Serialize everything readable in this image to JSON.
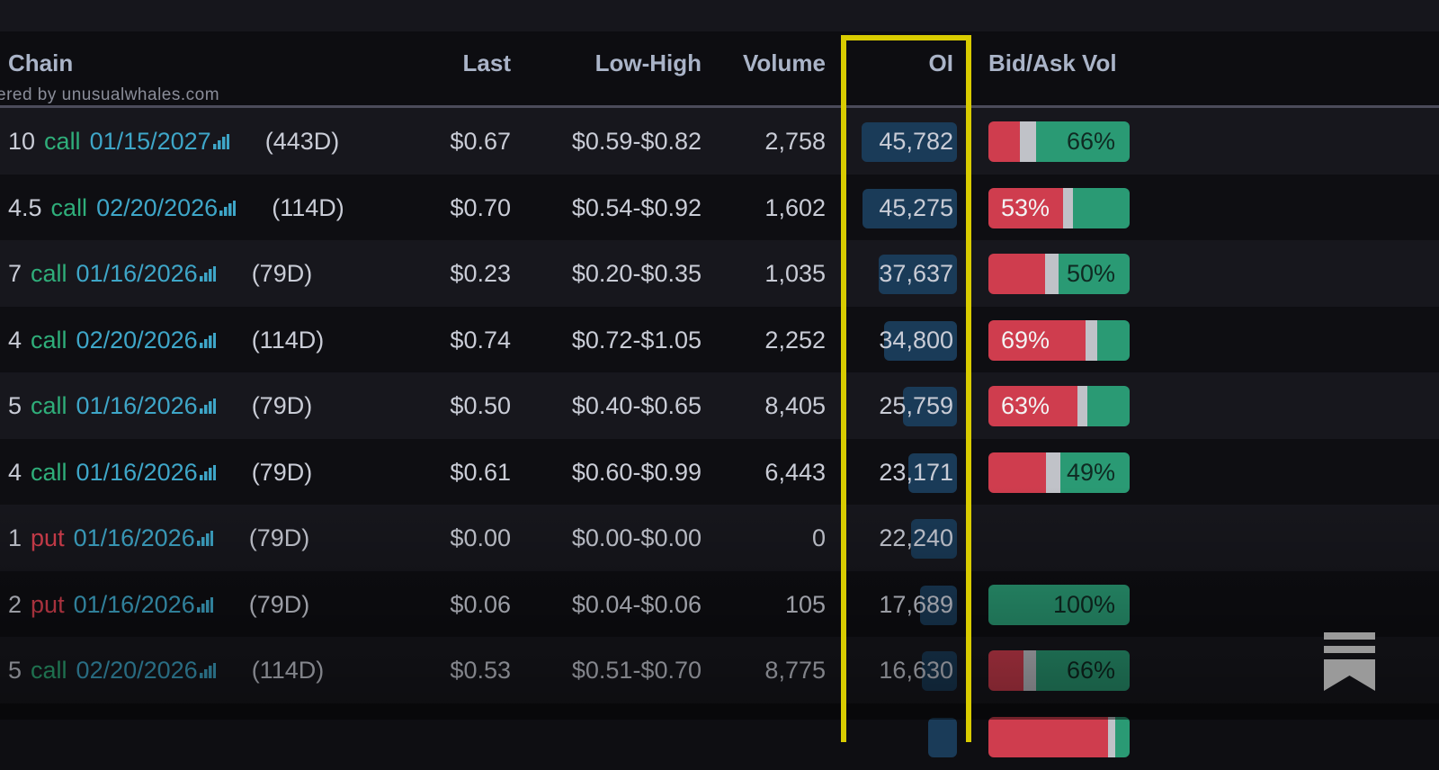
{
  "header": {
    "chain": "Chain",
    "last": "Last",
    "low_high": "Low-High",
    "volume": "Volume",
    "oi": "OI",
    "bid_ask_vol": "Bid/Ask Vol",
    "powered_by": "ered by unusualwhales.com"
  },
  "colors": {
    "call": "#2fae7a",
    "put": "#d8404f",
    "date": "#3ea6c8",
    "bid": "#cf3d4e",
    "ask": "#2a9a74",
    "highlight": "#d9cc00"
  },
  "oi_max": 45782,
  "rows": [
    {
      "strike": "10",
      "type": "call",
      "date": "01/15/2027",
      "dte": "(443D)",
      "last": "$0.67",
      "low_high": "$0.59-$0.82",
      "volume": "2,758",
      "oi": "45,782",
      "oi_value": 45782,
      "bid": 22,
      "mid": 12,
      "ask": 66,
      "label": "66%",
      "label_side": "ask"
    },
    {
      "strike": "4.5",
      "type": "call",
      "date": "02/20/2026",
      "dte": "(114D)",
      "last": "$0.70",
      "low_high": "$0.54-$0.92",
      "volume": "1,602",
      "oi": "45,275",
      "oi_value": 45275,
      "bid": 53,
      "mid": 7,
      "ask": 40,
      "label": "53%",
      "label_side": "bid"
    },
    {
      "strike": "7",
      "type": "call",
      "date": "01/16/2026",
      "dte": "(79D)",
      "last": "$0.23",
      "low_high": "$0.20-$0.35",
      "volume": "1,035",
      "oi": "37,637",
      "oi_value": 37637,
      "bid": 40,
      "mid": 10,
      "ask": 50,
      "label": "50%",
      "label_side": "ask"
    },
    {
      "strike": "4",
      "type": "call",
      "date": "02/20/2026",
      "dte": "(114D)",
      "last": "$0.74",
      "low_high": "$0.72-$1.05",
      "volume": "2,252",
      "oi": "34,800",
      "oi_value": 34800,
      "bid": 69,
      "mid": 8,
      "ask": 23,
      "label": "69%",
      "label_side": "bid"
    },
    {
      "strike": "5",
      "type": "call",
      "date": "01/16/2026",
      "dte": "(79D)",
      "last": "$0.50",
      "low_high": "$0.40-$0.65",
      "volume": "8,405",
      "oi": "25,759",
      "oi_value": 25759,
      "bid": 63,
      "mid": 7,
      "ask": 30,
      "label": "63%",
      "label_side": "bid"
    },
    {
      "strike": "4",
      "type": "call",
      "date": "01/16/2026",
      "dte": "(79D)",
      "last": "$0.61",
      "low_high": "$0.60-$0.99",
      "volume": "6,443",
      "oi": "23,171",
      "oi_value": 23171,
      "bid": 41,
      "mid": 10,
      "ask": 49,
      "label": "49%",
      "label_side": "ask"
    },
    {
      "strike": "1",
      "type": "put",
      "date": "01/16/2026",
      "dte": "(79D)",
      "last": "$0.00",
      "low_high": "$0.00-$0.00",
      "volume": "0",
      "oi": "22,240",
      "oi_value": 22240,
      "bid": null,
      "mid": null,
      "ask": null,
      "label": "",
      "label_side": ""
    },
    {
      "strike": "2",
      "type": "put",
      "date": "01/16/2026",
      "dte": "(79D)",
      "last": "$0.06",
      "low_high": "$0.04-$0.06",
      "volume": "105",
      "oi": "17,689",
      "oi_value": 17689,
      "bid": 0,
      "mid": 0,
      "ask": 100,
      "label": "100%",
      "label_side": "ask"
    },
    {
      "strike": "5",
      "type": "call",
      "date": "02/20/2026",
      "dte": "(114D)",
      "last": "$0.53",
      "low_high": "$0.51-$0.70",
      "volume": "8,775",
      "oi": "16,630",
      "oi_value": 16630,
      "bid": 25,
      "mid": 9,
      "ask": 66,
      "label": "66%",
      "label_side": "ask"
    },
    {
      "strike": "",
      "type": "",
      "date": "",
      "dte": "",
      "last": "",
      "low_high": "",
      "volume": "",
      "oi": "",
      "oi_value": 14000,
      "bid": 85,
      "mid": 5,
      "ask": 10,
      "label": "",
      "label_side": ""
    }
  ],
  "bookmark_icon": "bookmark-icon"
}
